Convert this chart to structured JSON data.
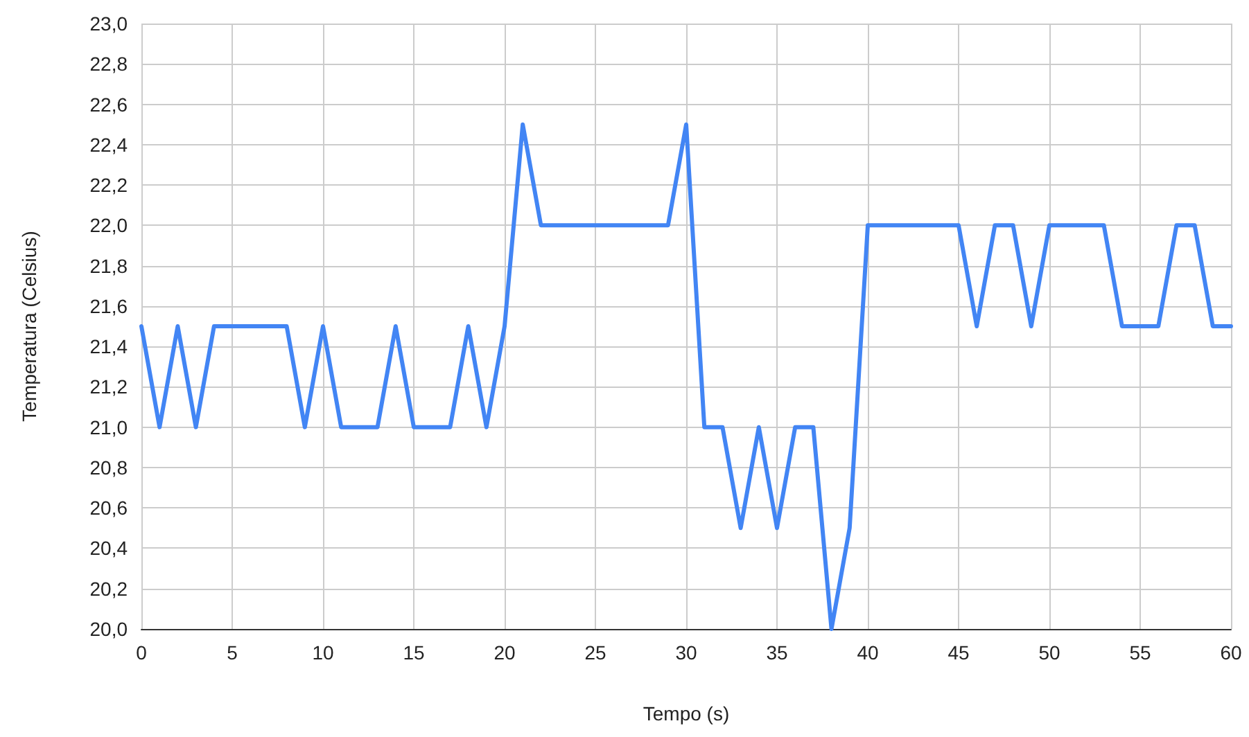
{
  "chart_data": {
    "type": "line",
    "xlabel": "Tempo (s)",
    "ylabel": "Temperatura (Celsius)",
    "x": [
      0,
      1,
      2,
      3,
      4,
      5,
      6,
      7,
      8,
      9,
      10,
      11,
      12,
      13,
      14,
      15,
      16,
      17,
      18,
      19,
      20,
      21,
      22,
      23,
      24,
      25,
      26,
      27,
      28,
      29,
      30,
      31,
      32,
      33,
      34,
      35,
      36,
      37,
      38,
      39,
      40,
      41,
      42,
      43,
      44,
      45,
      46,
      47,
      48,
      49,
      50,
      51,
      52,
      53,
      54,
      55,
      56,
      57,
      58,
      59,
      60
    ],
    "series": [
      {
        "color": "#4285f4",
        "values": [
          21.5,
          21.0,
          21.5,
          21.0,
          21.5,
          21.5,
          21.5,
          21.5,
          21.5,
          21.0,
          21.5,
          21.0,
          21.0,
          21.0,
          21.5,
          21.0,
          21.0,
          21.0,
          21.5,
          21.0,
          21.5,
          22.5,
          22.0,
          22.0,
          22.0,
          22.0,
          22.0,
          22.0,
          22.0,
          22.0,
          22.5,
          21.0,
          21.0,
          20.5,
          21.0,
          20.5,
          21.0,
          21.0,
          20.0,
          20.5,
          22.0,
          22.0,
          22.0,
          22.0,
          22.0,
          22.0,
          21.5,
          22.0,
          22.0,
          21.5,
          22.0,
          22.0,
          22.0,
          22.0,
          21.5,
          21.5,
          21.5,
          22.0,
          22.0,
          21.5,
          21.5
        ]
      }
    ],
    "xlim": [
      0,
      60
    ],
    "xticks": [
      0,
      5,
      10,
      15,
      20,
      25,
      30,
      35,
      40,
      45,
      50,
      55,
      60
    ],
    "ylim": [
      20.0,
      23.0
    ],
    "yticks": [
      {
        "value": 20.0,
        "label": "20,0"
      },
      {
        "value": 20.2,
        "label": "20,2"
      },
      {
        "value": 20.4,
        "label": "20,4"
      },
      {
        "value": 20.6,
        "label": "20,6"
      },
      {
        "value": 20.8,
        "label": "20,8"
      },
      {
        "value": 21.0,
        "label": "21,0"
      },
      {
        "value": 21.2,
        "label": "21,2"
      },
      {
        "value": 21.4,
        "label": "21,4"
      },
      {
        "value": 21.6,
        "label": "21,6"
      },
      {
        "value": 21.8,
        "label": "21,8"
      },
      {
        "value": 22.0,
        "label": "22,0"
      },
      {
        "value": 22.2,
        "label": "22,2"
      },
      {
        "value": 22.4,
        "label": "22,4"
      },
      {
        "value": 22.6,
        "label": "22,6"
      },
      {
        "value": 22.8,
        "label": "22,8"
      },
      {
        "value": 23.0,
        "label": "23,0"
      }
    ],
    "grid": true,
    "marker": "none",
    "line_style": "solid"
  }
}
